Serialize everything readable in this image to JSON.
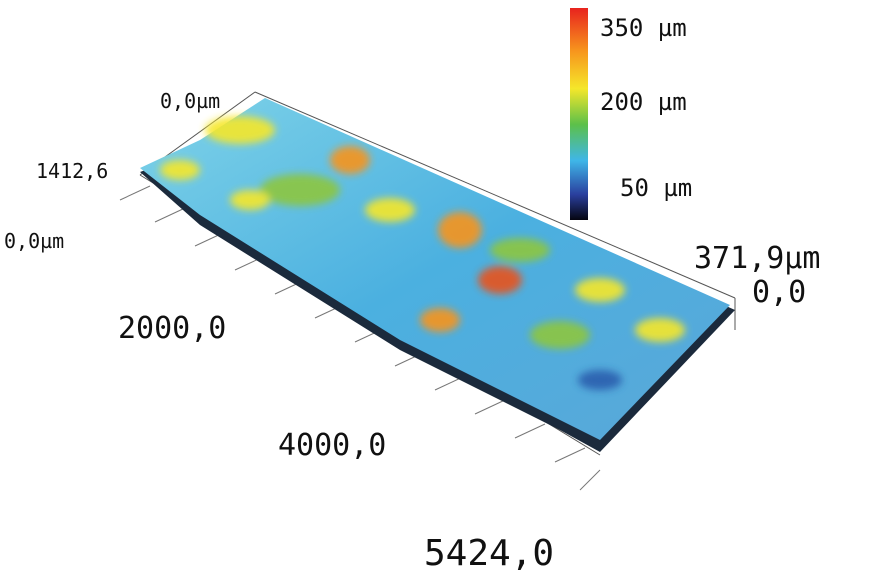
{
  "colorbar": {
    "labels": [
      "350 µm",
      "200 µm",
      "50 µm"
    ]
  },
  "axes": {
    "top_start": "0,0µm",
    "width_end": "1412,6",
    "left_start": "0,0µm",
    "length_ticks": [
      "2000,0",
      "4000,0"
    ],
    "length_end": "5424,0",
    "height_max": "371,9µm",
    "height_min": "0,0"
  }
}
